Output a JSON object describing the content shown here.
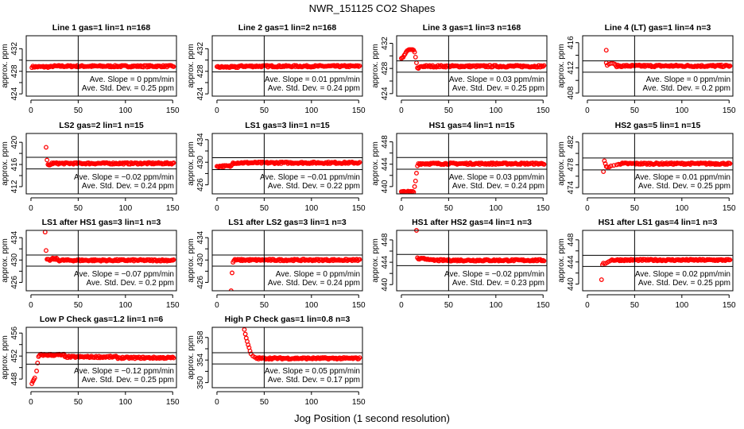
{
  "title": "NWR_151125  CO2 Shapes",
  "xlabel": "Jog Position (1 second resolution)",
  "colors": {
    "points": "#ff0000",
    "axes": "#000000"
  },
  "chart_data": [
    {
      "type": "scatter",
      "title": "Line 1 gas=1 lin=1 n=168",
      "ylabel": "approx. ppm",
      "xlim": [
        -5,
        154
      ],
      "ylim": [
        423.6,
        434.3
      ],
      "xticks": [
        0,
        50,
        100,
        150
      ],
      "yticks": [
        424,
        426,
        428,
        430,
        432
      ],
      "ytick_labels": [
        "424",
        "",
        "428",
        "",
        "432"
      ],
      "vline": 50,
      "hlines": [
        429.9,
        427.9
      ],
      "slope": "Ave. Slope =  0  ppm/min",
      "std": "Ave. Std. Dev. =  0.25  ppm",
      "points": [],
      "steady": [
        {
          "x_from": 1,
          "x_to": 22,
          "y": 428.8
        },
        {
          "x_from": 23,
          "x_to": 151,
          "y": 428.9
        }
      ]
    },
    {
      "type": "scatter",
      "title": "Line 2 gas=1 lin=2 n=168",
      "ylabel": "approx. ppm",
      "xlim": [
        -5,
        154
      ],
      "ylim": [
        423.6,
        434.3
      ],
      "xticks": [
        0,
        50,
        100,
        150
      ],
      "yticks": [
        424,
        426,
        428,
        430,
        432
      ],
      "ytick_labels": [
        "424",
        "",
        "428",
        "",
        "432"
      ],
      "vline": 50,
      "hlines": [
        429.9,
        427.9
      ],
      "slope": "Ave. Slope =  0.01  ppm/min",
      "std": "Ave. Std. Dev. =  0.24  ppm",
      "points": [],
      "steady": [
        {
          "x_from": 0,
          "x_to": 22,
          "y": 428.75
        },
        {
          "x_from": 23,
          "x_to": 151,
          "y": 428.9
        }
      ]
    },
    {
      "type": "scatter",
      "title": "Line 3 gas=1 lin=3 n=168",
      "ylabel": "approx. ppm",
      "xlim": [
        -5,
        154
      ],
      "ylim": [
        423.6,
        433.2
      ],
      "xticks": [
        0,
        50,
        100,
        150
      ],
      "yticks": [
        424,
        426,
        428,
        430,
        432
      ],
      "ytick_labels": [
        "424",
        "",
        "428",
        "",
        "432"
      ],
      "vline": 50,
      "hlines": [
        429.2,
        427.4
      ],
      "slope": "Ave. Slope =  0.03  ppm/min",
      "std": "Ave. Std. Dev. =  0.25  ppm",
      "points": [
        [
          0,
          429.6
        ],
        [
          1,
          429.7
        ],
        [
          2,
          429.8
        ],
        [
          3,
          430.1
        ],
        [
          4,
          430.3
        ],
        [
          5,
          430.6
        ],
        [
          6,
          430.8
        ],
        [
          7,
          430.9
        ],
        [
          8,
          431.0
        ],
        [
          9,
          431.0
        ],
        [
          10,
          431.0
        ],
        [
          11,
          431.0
        ],
        [
          12,
          431.0
        ],
        [
          13,
          430.9
        ],
        [
          14,
          430.6
        ],
        [
          15,
          429.8
        ],
        [
          16,
          428.9
        ],
        [
          17,
          428.1
        ],
        [
          18,
          428.0
        ],
        [
          19,
          428.2
        ],
        [
          20,
          428.3
        ]
      ],
      "steady": [
        {
          "x_from": 21,
          "x_to": 151,
          "y": 428.35
        }
      ]
    },
    {
      "type": "scatter",
      "title": "Line 4 (LT) gas=1 lin=4 n=3",
      "ylabel": "approx. ppm",
      "xlim": [
        -5,
        154
      ],
      "ylim": [
        407.5,
        417.1
      ],
      "xticks": [
        0,
        50,
        100,
        150
      ],
      "yticks": [
        408,
        410,
        412,
        414,
        416
      ],
      "ytick_labels": [
        "408",
        "",
        "412",
        "",
        "416"
      ],
      "vline": 50,
      "hlines": [
        413.1,
        411.3
      ],
      "slope": "Ave. Slope =  0  ppm/min",
      "std": "Ave. Std. Dev. =  0.2  ppm",
      "points": [
        [
          20,
          414.8
        ],
        [
          20,
          412.8
        ],
        [
          21,
          412.4
        ],
        [
          23,
          412.6
        ],
        [
          25,
          412.7
        ],
        [
          27,
          412.7
        ],
        [
          29,
          412.6
        ]
      ],
      "steady": [
        {
          "x_from": 30,
          "x_to": 151,
          "y": 412.3
        }
      ]
    },
    {
      "type": "scatter",
      "title": "LS2 gas=2 lin=1 n=15",
      "ylabel": "approx. ppm",
      "xlim": [
        -5,
        154
      ],
      "ylim": [
        410.7,
        421.6
      ],
      "xticks": [
        0,
        50,
        100,
        150
      ],
      "yticks": [
        412,
        414,
        416,
        418,
        420
      ],
      "ytick_labels": [
        "412",
        "",
        "416",
        "",
        "420"
      ],
      "vline": 50,
      "hlines": [
        417.3,
        415.2
      ],
      "slope": "Ave. Slope =  −0.02  ppm/min",
      "std": "Ave. Std. Dev. =  0.24  ppm",
      "points": [
        [
          16,
          419.1
        ],
        [
          17,
          416.8
        ],
        [
          18,
          416.0
        ],
        [
          19,
          415.9
        ],
        [
          20,
          415.9
        ],
        [
          21,
          416.0
        ]
      ],
      "steady": [
        {
          "x_from": 22,
          "x_to": 151,
          "y": 416.2
        }
      ]
    },
    {
      "type": "scatter",
      "title": "LS1 gas=3 lin=1 n=15",
      "ylabel": "approx. ppm",
      "xlim": [
        -5,
        154
      ],
      "ylim": [
        424.4,
        435.1
      ],
      "xticks": [
        0,
        50,
        100,
        150
      ],
      "yticks": [
        426,
        428,
        430,
        432,
        434
      ],
      "ytick_labels": [
        "426",
        "",
        "430",
        "",
        "434"
      ],
      "vline": 50,
      "hlines": [
        430.8,
        428.7
      ],
      "slope": "Ave. Slope =  −0.01  ppm/min",
      "std": "Ave. Std. Dev. =  0.22  ppm",
      "points": [
        [
          16,
          429.6
        ]
      ],
      "steady": [
        {
          "x_from": 0,
          "x_to": 15,
          "y": 429.3
        },
        {
          "x_from": 17,
          "x_to": 151,
          "y": 429.9
        }
      ]
    },
    {
      "type": "scatter",
      "title": "HS1 gas=4 lin=1 n=15",
      "ylabel": "approx. ppm",
      "xlim": [
        -5,
        154
      ],
      "ylim": [
        438.7,
        449.5
      ],
      "xticks": [
        0,
        50,
        100,
        150
      ],
      "yticks": [
        440,
        442,
        444,
        446,
        448
      ],
      "ytick_labels": [
        "440",
        "",
        "444",
        "",
        "448"
      ],
      "vline": 50,
      "hlines": [
        445.2,
        443.1
      ],
      "slope": "Ave. Slope =  0.03  ppm/min",
      "std": "Ave. Std. Dev. =  0.24  ppm",
      "points": [
        [
          14,
          440.0
        ],
        [
          15,
          441.0
        ],
        [
          16,
          442.4
        ],
        [
          17,
          443.7
        ]
      ],
      "steady": [
        {
          "x_from": 0,
          "x_to": 13,
          "y": 439.05
        },
        {
          "x_from": 18,
          "x_to": 151,
          "y": 444.1
        }
      ]
    },
    {
      "type": "scatter",
      "title": "HS2 gas=5 lin=1 n=15",
      "ylabel": "approx. ppm",
      "xlim": [
        -5,
        154
      ],
      "ylim": [
        472.9,
        483.5
      ],
      "xticks": [
        0,
        50,
        100,
        150
      ],
      "yticks": [
        474,
        476,
        478,
        480,
        482
      ],
      "ytick_labels": [
        "474",
        "",
        "478",
        "",
        "482"
      ],
      "vline": 50,
      "hlines": [
        479.2,
        477.1
      ],
      "slope": "Ave. Slope =  0.01  ppm/min",
      "std": "Ave. Std. Dev. =  0.25  ppm",
      "points": [
        [
          17,
          476.8
        ],
        [
          18,
          478.7
        ],
        [
          19,
          478.2
        ],
        [
          20,
          477.7
        ],
        [
          21,
          477.6
        ],
        [
          23,
          477.6
        ],
        [
          25,
          477.8
        ],
        [
          28,
          477.9
        ],
        [
          31,
          478.0
        ],
        [
          33,
          478.1
        ]
      ],
      "steady": [
        {
          "x_from": 35,
          "x_to": 151,
          "y": 478.2
        }
      ]
    },
    {
      "type": "scatter",
      "title": "LS1 after HS1 gas=3 lin=1 n=3",
      "ylabel": "approx. ppm",
      "xlim": [
        -5,
        154
      ],
      "ylim": [
        424.5,
        435.3
      ],
      "xticks": [
        0,
        50,
        100,
        150
      ],
      "yticks": [
        426,
        428,
        430,
        432,
        434
      ],
      "ytick_labels": [
        "426",
        "",
        "430",
        "",
        "434"
      ],
      "vline": 50,
      "hlines": [
        430.9,
        428.9
      ],
      "slope": "Ave. Slope =  −0.07  ppm/min",
      "std": "Ave. Std. Dev. =  0.2  ppm",
      "points": [
        [
          15,
          435.0
        ],
        [
          16,
          431.7
        ]
      ],
      "steady": [
        {
          "x_from": 17,
          "x_to": 21,
          "y": 430.0
        },
        {
          "x_from": 22,
          "x_to": 28,
          "y": 430.2
        },
        {
          "x_from": 29,
          "x_to": 151,
          "y": 429.95
        }
      ]
    },
    {
      "type": "scatter",
      "title": "LS1 after LS2 gas=3 lin=1 n=3",
      "ylabel": "approx. ppm",
      "xlim": [
        -5,
        154
      ],
      "ylim": [
        424.5,
        435.3
      ],
      "xticks": [
        0,
        50,
        100,
        150
      ],
      "yticks": [
        426,
        428,
        430,
        432,
        434
      ],
      "ytick_labels": [
        "426",
        "",
        "430",
        "",
        "434"
      ],
      "vline": 50,
      "hlines": [
        430.9,
        428.9
      ],
      "slope": "Ave. Slope =  0  ppm/min",
      "std": "Ave. Std. Dev. =  0.24  ppm",
      "points": [
        [
          15,
          424.5
        ],
        [
          16,
          427.7
        ],
        [
          17,
          429.6
        ]
      ],
      "steady": [
        {
          "x_from": 18,
          "x_to": 151,
          "y": 430.0
        }
      ]
    },
    {
      "type": "scatter",
      "title": "HS1 after HS2 gas=4 lin=1 n=3",
      "ylabel": "approx. ppm",
      "xlim": [
        -5,
        154
      ],
      "ylim": [
        438.9,
        449.7
      ],
      "xticks": [
        0,
        50,
        100,
        150
      ],
      "yticks": [
        440,
        442,
        444,
        446,
        448
      ],
      "ytick_labels": [
        "440",
        "",
        "444",
        "",
        "448"
      ],
      "vline": 50,
      "hlines": [
        445.4,
        443.4
      ],
      "slope": "Ave. Slope =  −0.02  ppm/min",
      "std": "Ave. Std. Dev. =  0.23  ppm",
      "points": [
        [
          16,
          449.7
        ],
        [
          17,
          444.8
        ]
      ],
      "steady": [
        {
          "x_from": 18,
          "x_to": 30,
          "y": 444.6
        },
        {
          "x_from": 31,
          "x_to": 151,
          "y": 444.35
        }
      ]
    },
    {
      "type": "scatter",
      "title": "HS1 after LS1 gas=4 lin=1 n=3",
      "ylabel": "approx. ppm",
      "xlim": [
        -5,
        154
      ],
      "ylim": [
        438.8,
        449.7
      ],
      "xticks": [
        0,
        50,
        100,
        150
      ],
      "yticks": [
        440,
        442,
        444,
        446,
        448
      ],
      "ytick_labels": [
        "440",
        "",
        "444",
        "",
        "448"
      ],
      "vline": 50,
      "hlines": [
        445.2,
        443.2
      ],
      "slope": "Ave. Slope =  0.02  ppm/min",
      "std": "Ave. Std. Dev. =  0.25  ppm",
      "points": [
        [
          15,
          440.8
        ],
        [
          16,
          443.5
        ],
        [
          17,
          443.8
        ],
        [
          19,
          443.7
        ],
        [
          21,
          443.9
        ],
        [
          23,
          444.1
        ]
      ],
      "steady": [
        {
          "x_from": 25,
          "x_to": 151,
          "y": 444.35
        }
      ]
    },
    {
      "type": "scatter",
      "title": "Low P Check gas=1.2 lin=1 n=6",
      "ylabel": "approx. ppm",
      "xlim": [
        -5,
        154
      ],
      "ylim": [
        446.5,
        457.0
      ],
      "xticks": [
        0,
        50,
        100,
        150
      ],
      "yticks": [
        448,
        450,
        452,
        454,
        456
      ],
      "ytick_labels": [
        "448",
        "",
        "452",
        "",
        "456"
      ],
      "vline": 50,
      "hlines": [
        452.6,
        450.6
      ],
      "slope": "Ave. Slope =  −0.12  ppm/min",
      "std": "Ave. Std. Dev. =  0.25  ppm",
      "points": [
        [
          1,
          447.2
        ],
        [
          2,
          447.6
        ],
        [
          3,
          447.9
        ],
        [
          4,
          448.2
        ],
        [
          6,
          449.4
        ],
        [
          7,
          450.8
        ],
        [
          8,
          451.9
        ],
        [
          9,
          452.1
        ]
      ],
      "steady": [
        {
          "x_from": 10,
          "x_to": 35,
          "y": 452.2
        },
        {
          "x_from": 36,
          "x_to": 90,
          "y": 451.85
        },
        {
          "x_from": 91,
          "x_to": 151,
          "y": 451.7
        }
      ]
    },
    {
      "type": "scatter",
      "title": "High P Check gas=1 lin=0.8 n=3",
      "ylabel": "approx. ppm",
      "xlim": [
        -5,
        154
      ],
      "ylim": [
        349.1,
        359.8
      ],
      "xticks": [
        0,
        50,
        100,
        150
      ],
      "yticks": [
        350,
        352,
        354,
        356,
        358
      ],
      "ytick_labels": [
        "350",
        "",
        "354",
        "",
        "358"
      ],
      "vline": 50,
      "hlines": [
        355.3,
        353.3
      ],
      "slope": "Ave. Slope =  0.05  ppm/min",
      "std": "Ave. Std. Dev. =  0.17  ppm",
      "points": [
        [
          29,
          359.4
        ],
        [
          30,
          358.6
        ],
        [
          31,
          357.9
        ],
        [
          32,
          357.3
        ],
        [
          33,
          356.7
        ],
        [
          34,
          356.2
        ],
        [
          35,
          355.6
        ],
        [
          36,
          355.1
        ],
        [
          38,
          354.7
        ],
        [
          40,
          354.5
        ]
      ],
      "steady": [
        {
          "x_from": 42,
          "x_to": 151,
          "y": 354.3
        }
      ]
    }
  ]
}
